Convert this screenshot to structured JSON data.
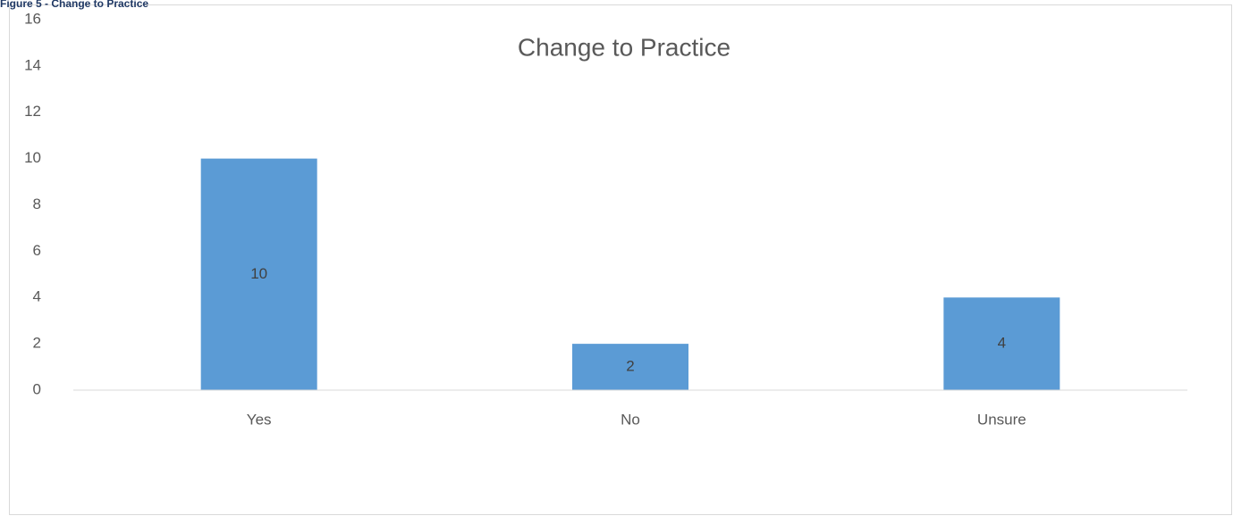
{
  "figure_caption": "Figure 5 - Change to Practice",
  "chart_data": {
    "type": "bar",
    "title": "Change to Practice",
    "categories": [
      "Yes",
      "No",
      "Unsure"
    ],
    "values": [
      10,
      2,
      4
    ],
    "color": "#5b9bd5",
    "ylim": [
      0,
      16
    ],
    "yticks": [
      0,
      2,
      4,
      6,
      8,
      10,
      12,
      14,
      16
    ],
    "grid": false,
    "data_labels": true
  }
}
